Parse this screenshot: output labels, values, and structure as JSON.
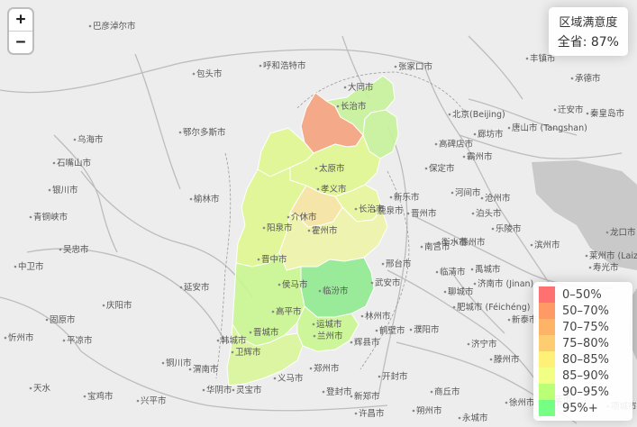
{
  "info": {
    "title": "区域满意度",
    "summary": "全省: 87%"
  },
  "zoom": {
    "in_label": "+",
    "out_label": "−"
  },
  "legend": [
    {
      "label": "0–50%",
      "color": "#ff4d4d"
    },
    {
      "label": "50–70%",
      "color": "#ff7f3f"
    },
    {
      "label": "70–75%",
      "color": "#ffa040"
    },
    {
      "label": "75–80%",
      "color": "#ffc04d"
    },
    {
      "label": "80–85%",
      "color": "#ffee55"
    },
    {
      "label": "85–90%",
      "color": "#eeff66"
    },
    {
      "label": "90–95%",
      "color": "#aaff55"
    },
    {
      "label": "95%+",
      "color": "#55ff66"
    }
  ],
  "regions": [
    {
      "name": "大同市",
      "color": "#f4a27c"
    },
    {
      "name": "朔州市"
    },
    {
      "name": "忻州市"
    },
    {
      "name": "吕梁市"
    },
    {
      "name": "太原市"
    },
    {
      "name": "阳泉市"
    },
    {
      "name": "晋中市"
    },
    {
      "name": "长治市",
      "color": "#8fe98f"
    },
    {
      "name": "晋城市"
    },
    {
      "name": "临汾市"
    },
    {
      "name": "运城市"
    }
  ],
  "places": [
    "巴彦淖尔市",
    "包头市",
    "呼和浩特市",
    "张家口市",
    "丰镇市",
    "承德市",
    "鄂尔多斯市",
    "北京(Beijing)",
    "迁安市",
    "秦皇岛市",
    "唐山市 (Tangshan)",
    "廊坊市",
    "高碑店市",
    "霸州市",
    "保定市",
    "乌海市",
    "石嘴山市",
    "银川市",
    "榆林市",
    "新乐市",
    "河间市",
    "沧州市",
    "青铜峡市",
    "吴忠市",
    "鹿泉市",
    "晋州市",
    "泊头市",
    "衡水市",
    "乐陵市",
    "滨州市",
    "龙口市",
    "中卫市",
    "延安市",
    "南宫市",
    "德州市",
    "邢台市",
    "禹城市",
    "莱州市 (Laizh",
    "临清市",
    "寿光市",
    "固原市",
    "庆阳市",
    "武安市",
    "济南市 (Jinan)",
    "聊城市",
    "肥城市 (Féichéng)",
    "新泰市",
    "平凉市",
    "林州市",
    "鹤壁市",
    "濮阳市",
    "韩城市",
    "辉县市",
    "济宁市",
    "铜川市",
    "渭南市",
    "郑州市",
    "开封市",
    "滕州市",
    "天水",
    "宝鸡市",
    "兴平市",
    "华阴市",
    "灵宝市",
    "义马市",
    "登封市",
    "新郑市",
    "商丘市",
    "徐州市 (Xuzh",
    "枣庄市",
    "项城市",
    "许昌市",
    "永城市",
    "大同市",
    "长治市",
    "太原市",
    "孝义市",
    "介休市",
    "阳泉市",
    "晋中市",
    "长治市",
    "霍州市",
    "临汾市",
    "侯马市",
    "高平市",
    "晋城市",
    "运城市",
    "兰州市",
    "卫辉市",
    "忻州市",
    "朔州市"
  ]
}
